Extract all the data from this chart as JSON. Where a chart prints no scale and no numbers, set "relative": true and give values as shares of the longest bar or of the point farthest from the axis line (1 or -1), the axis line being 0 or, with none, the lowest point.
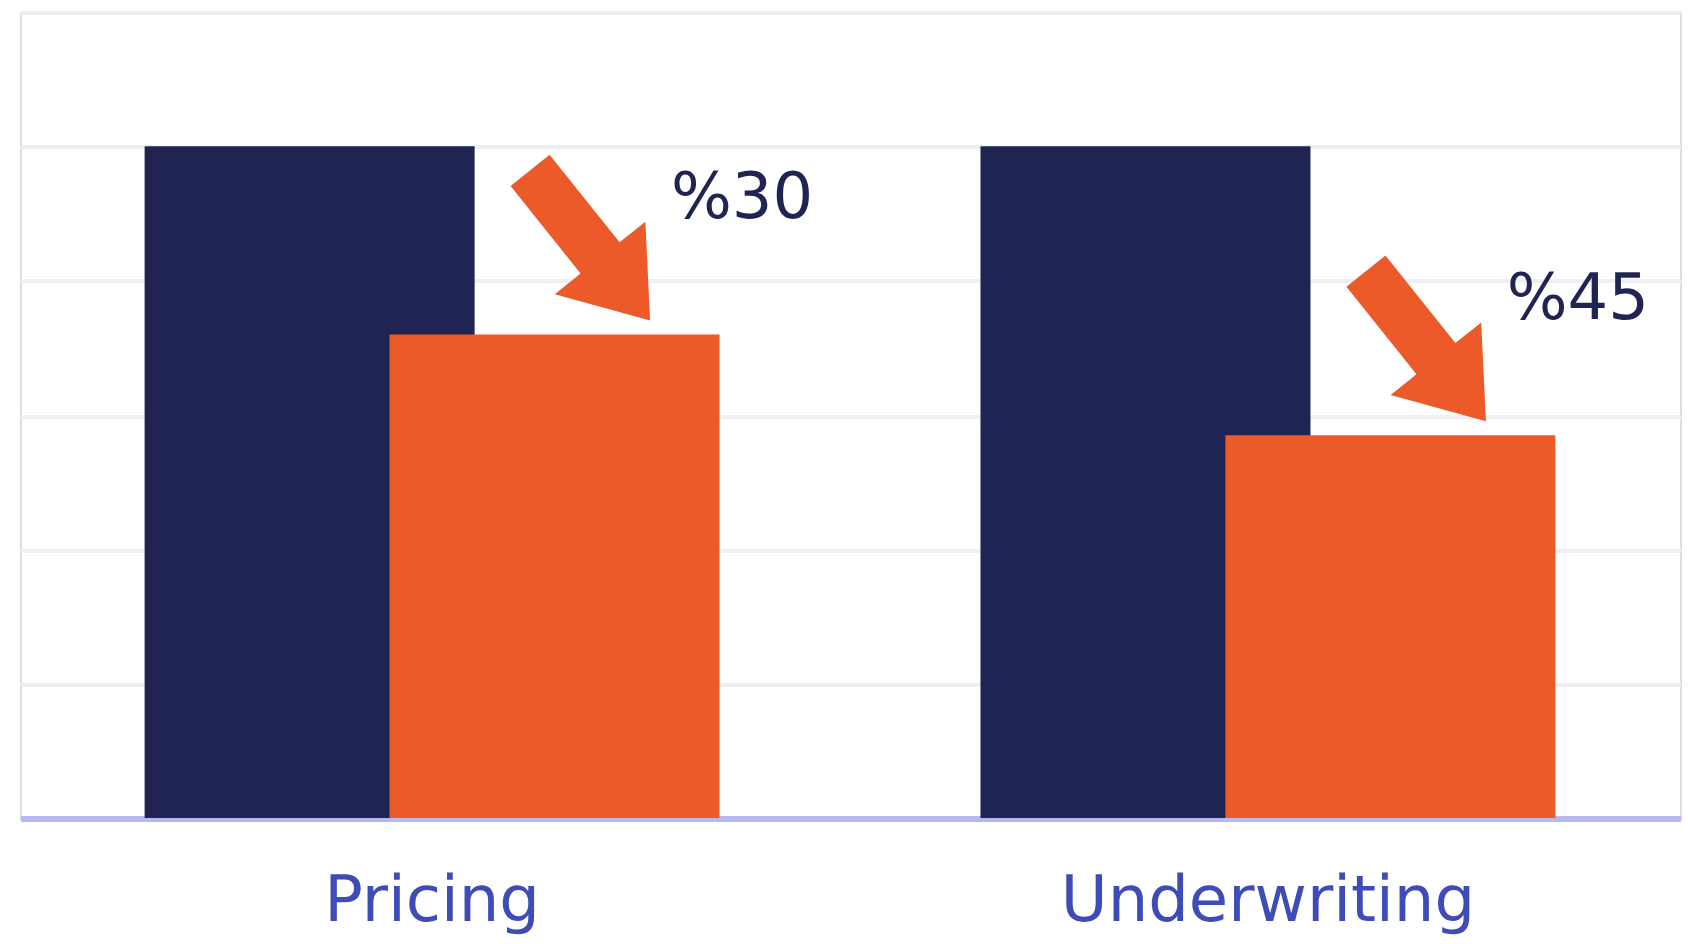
{
  "chart_data": {
    "type": "bar",
    "relative": true,
    "categories": [
      "Pricing",
      "Underwriting"
    ],
    "series": [
      {
        "color": "#1f2452",
        "values": [
          1,
          1
        ]
      },
      {
        "color": "#ec5a29",
        "values": [
          0.72,
          0.57
        ]
      }
    ],
    "annotations": [
      "%30",
      "%45"
    ],
    "grid": "y"
  }
}
